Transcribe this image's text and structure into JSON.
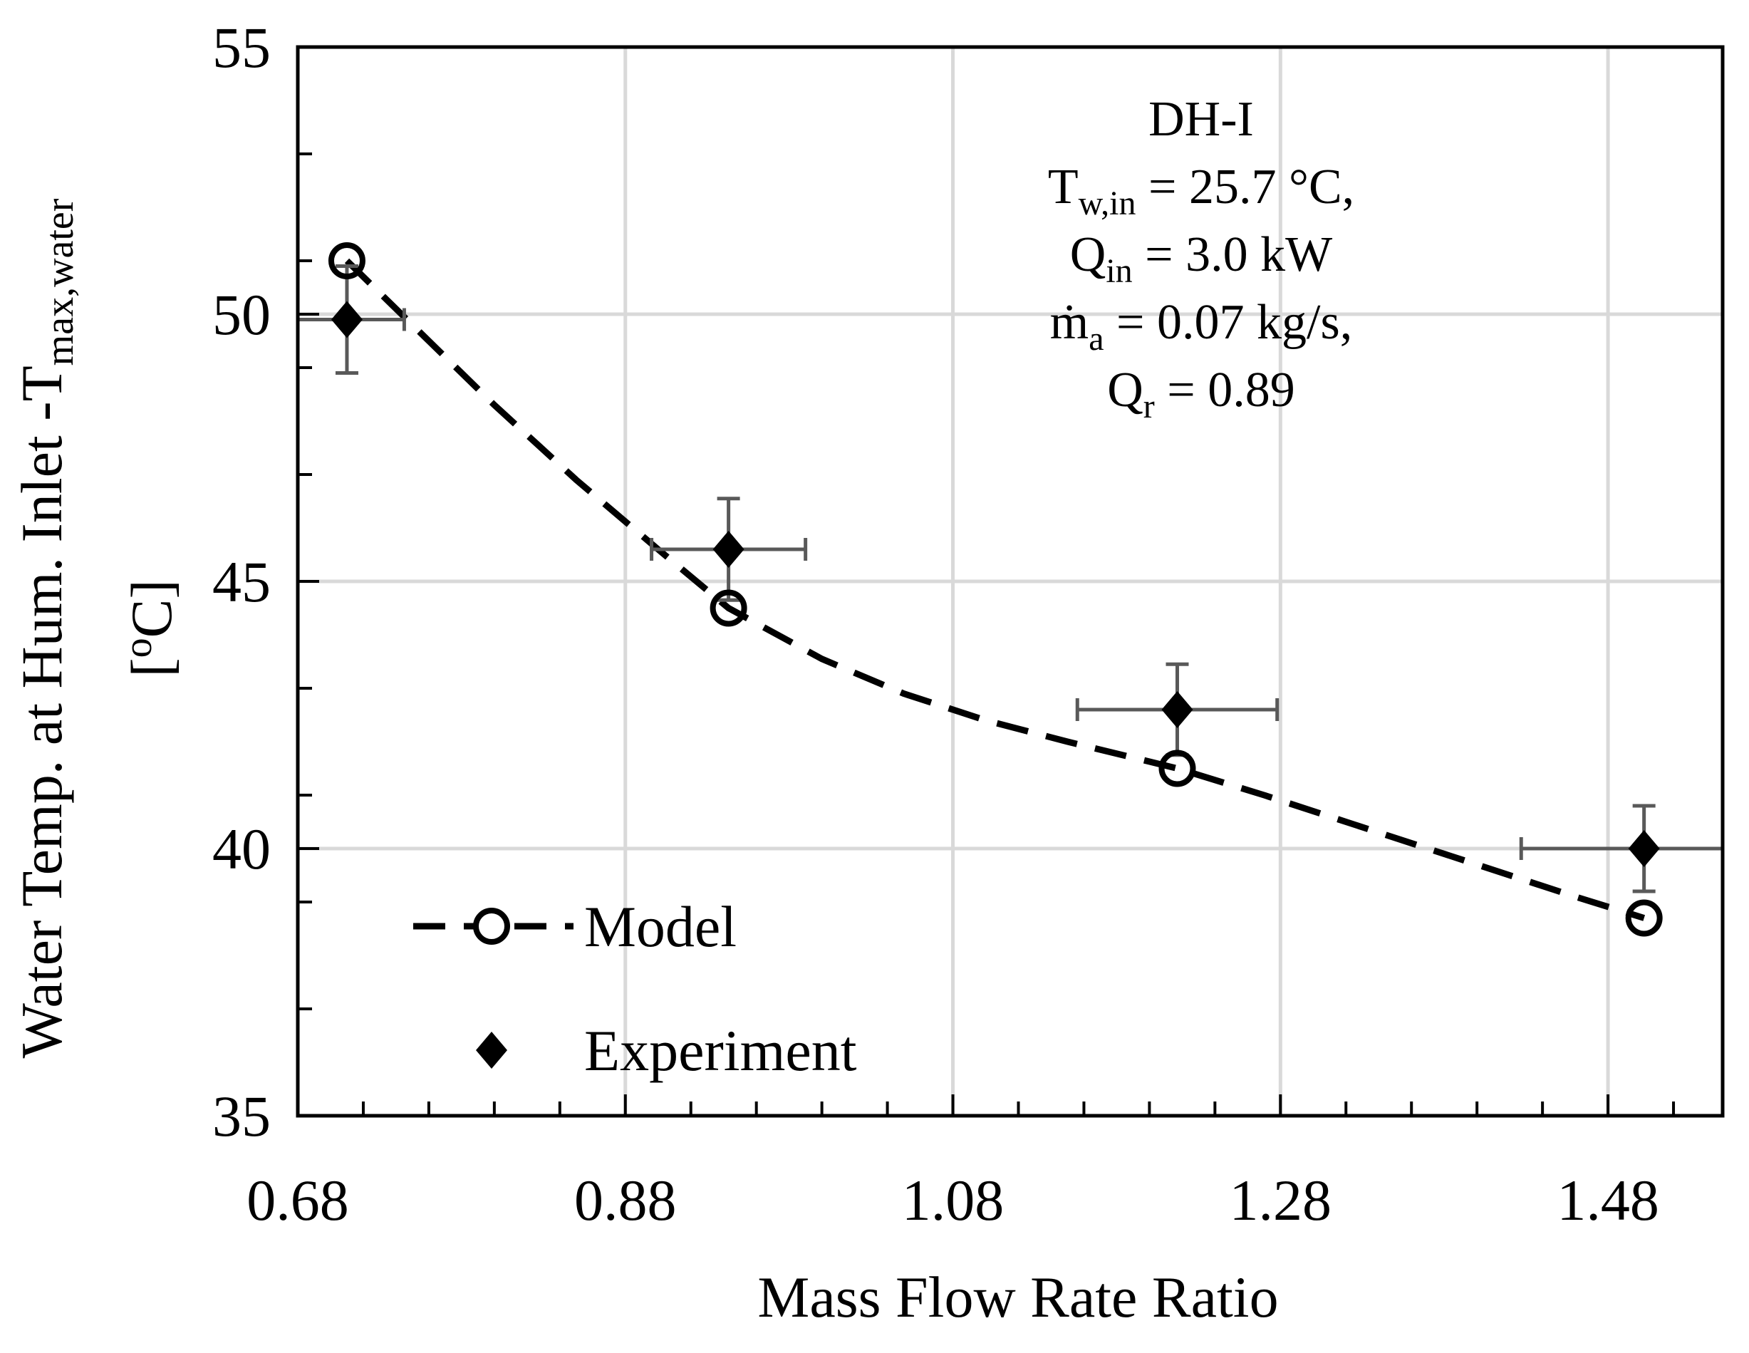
{
  "chart_data": {
    "type": "scatter",
    "xlabel": "Mass Flow Rate Ratio",
    "ylabel": {
      "prefix": "Water Temp. at Hum. Inlet -T",
      "sub": "max,water",
      "unit_open": "[",
      "unit_sup": "o",
      "unit_close": "C]"
    },
    "xlim": [
      0.68,
      1.55
    ],
    "ylim": [
      35,
      55
    ],
    "x_ticks": [
      0.68,
      0.88,
      1.08,
      1.28,
      1.48
    ],
    "x_tick_labels": [
      "0.68",
      "0.88",
      "1.08",
      "1.28",
      "1.48"
    ],
    "x_minor_step": 0.04,
    "y_ticks": [
      35,
      40,
      45,
      50,
      55
    ],
    "y_tick_labels": [
      "35",
      "40",
      "45",
      "50",
      "55"
    ],
    "y_minor_step": 2,
    "grid": true,
    "series": [
      {
        "name": "Model",
        "style": "dashed-line-open-circle",
        "x": [
          0.71,
          0.943,
          1.217,
          1.502
        ],
        "y": [
          51.0,
          44.5,
          41.5,
          38.7
        ],
        "curve_x": [
          0.71,
          0.75,
          0.8,
          0.85,
          0.9,
          0.943,
          1.0,
          1.05,
          1.1,
          1.15,
          1.217,
          1.27,
          1.32,
          1.37,
          1.42,
          1.46,
          1.502
        ],
        "curve_y": [
          51.0,
          49.8,
          48.3,
          46.9,
          45.6,
          44.5,
          43.55,
          42.9,
          42.4,
          42.0,
          41.5,
          41.0,
          40.5,
          40.0,
          39.5,
          39.1,
          38.7
        ]
      },
      {
        "name": "Experiment",
        "style": "filled-diamond-errorbars",
        "x": [
          0.71,
          0.943,
          1.217,
          1.502
        ],
        "y": [
          49.9,
          45.6,
          42.6,
          40.0
        ],
        "x_err": [
          0.035,
          0.047,
          0.061,
          0.075
        ],
        "y_err": [
          1.0,
          0.95,
          0.85,
          0.8
        ]
      }
    ],
    "legend": {
      "position": "bottom-left",
      "items": [
        "Model",
        "Experiment"
      ]
    },
    "annotation": {
      "position": "top-right",
      "title": "DH-I",
      "lines": [
        {
          "main": "T",
          "sub": "w,in",
          "rest": " = 25.7 °C,"
        },
        {
          "main": "Q",
          "sub": "in",
          "rest": " = 3.0 kW"
        },
        {
          "main": "ṁ",
          "sub": "a",
          "rest": " = 0.07 kg/s,"
        },
        {
          "main": "Q",
          "sub": "r",
          "rest": " = 0.89"
        }
      ]
    },
    "colors": {
      "grid": "#d9d9d9",
      "axis": "#000000",
      "model": "#000000",
      "experiment": "#000000",
      "errorbar": "#595959"
    }
  }
}
